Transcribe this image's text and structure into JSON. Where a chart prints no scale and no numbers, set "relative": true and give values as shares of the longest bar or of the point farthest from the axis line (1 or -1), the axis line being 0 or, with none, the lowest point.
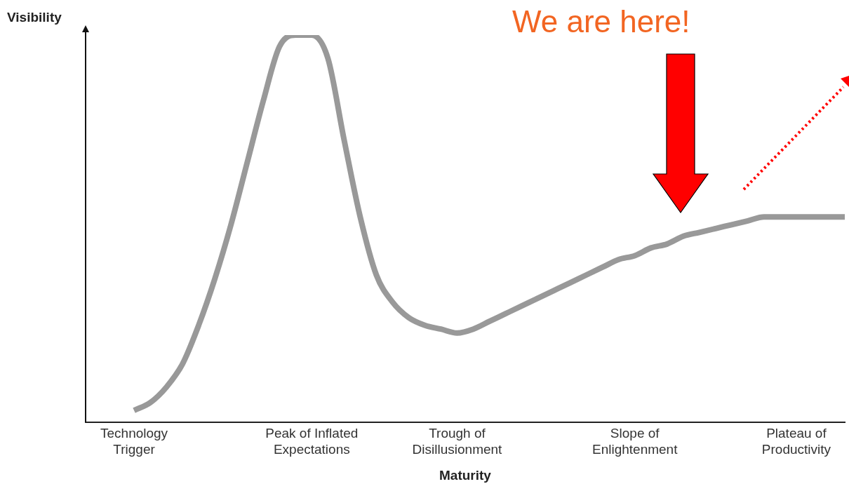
{
  "chart_data": {
    "type": "line",
    "relative": true,
    "xlabel": "Maturity",
    "ylabel": "Visibility",
    "categories": [
      null,
      null,
      null,
      "Technology Trigger",
      null,
      null,
      null,
      null,
      null,
      null,
      null,
      null,
      null,
      null,
      "Peak of Inflated Expectations",
      null,
      null,
      null,
      null,
      null,
      null,
      null,
      null,
      "Trough of Disillusionment",
      null,
      null,
      null,
      null,
      null,
      null,
      null,
      null,
      null,
      null,
      "Slope of Enlightenment",
      null,
      null,
      null,
      null,
      null,
      null,
      null,
      null,
      null,
      "Plateau of Productivity",
      null,
      null,
      null
    ],
    "series": [
      {
        "color": "#999999",
        "values": [
          null,
          null,
          null,
          0.03,
          0.05,
          0.09,
          0.15,
          0.25,
          0.37,
          0.51,
          0.67,
          0.83,
          0.97,
          1,
          1,
          0.94,
          0.73,
          0.53,
          0.38,
          0.31,
          0.27,
          0.25,
          0.24,
          0.23,
          0.24,
          0.26,
          0.28,
          0.3,
          0.32,
          0.34,
          0.36,
          0.38,
          0.4,
          0.42,
          0.43,
          0.45,
          0.46,
          0.48,
          0.49,
          0.5,
          0.51,
          0.52,
          0.53,
          0.53,
          0.53,
          0.53,
          0.53,
          0.53
        ]
      }
    ],
    "annotations": [
      "We are here!"
    ],
    "marker": "none",
    "line_style": "solid",
    "legend": false,
    "grid": false
  }
}
